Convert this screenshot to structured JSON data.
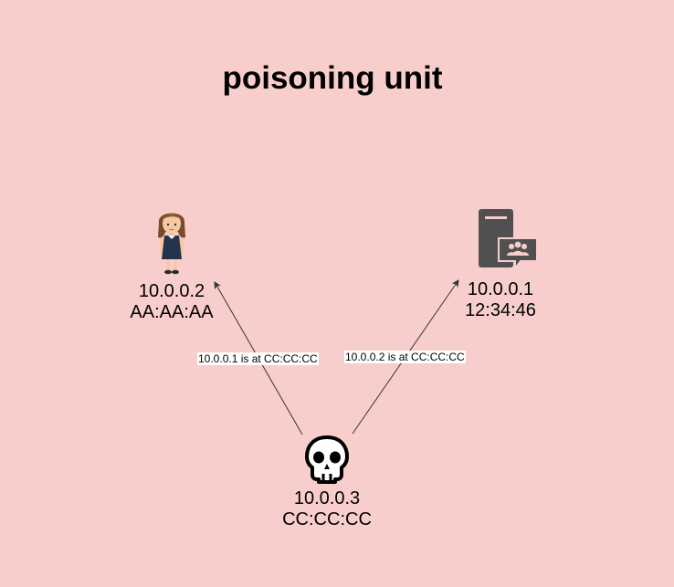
{
  "title": "poisoning unit",
  "nodes": {
    "victim": {
      "icon": "girl-user-icon",
      "ip": "10.0.0.2",
      "mac": "AA:AA:AA"
    },
    "server": {
      "icon": "server-users-icon",
      "ip": "10.0.0.1",
      "mac": "12:34:46"
    },
    "attacker": {
      "icon": "skull-icon",
      "ip": "10.0.0.3",
      "mac": "CC:CC:CC"
    }
  },
  "edges": [
    {
      "from": "attacker",
      "to": "victim",
      "label": "10.0.0.1 is at CC:CC:CC"
    },
    {
      "from": "attacker",
      "to": "server",
      "label": "10.0.0.2 is at CC:CC:CC"
    }
  ],
  "colors": {
    "background": "#f8cecc",
    "edge": "#333333",
    "server_icon": "#505050"
  }
}
